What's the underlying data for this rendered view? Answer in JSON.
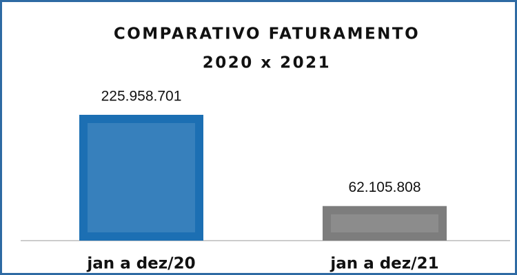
{
  "chart_data": {
    "type": "bar",
    "title": [
      "COMPARATIVO FATURAMENTO",
      "2020 x 2021"
    ],
    "categories": [
      "jan a dez/20",
      "jan a dez/21"
    ],
    "values": [
      225958701,
      62105808
    ],
    "value_labels": [
      "225.958.701",
      "62.105.808"
    ],
    "colors": [
      "#1c6fb3",
      "#7d7d7d"
    ]
  }
}
